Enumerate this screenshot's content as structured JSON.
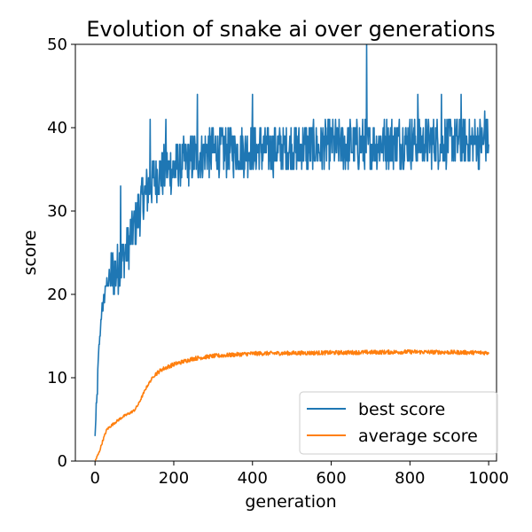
{
  "chart_data": {
    "type": "line",
    "title": "Evolution of snake ai over generations",
    "xlabel": "generation",
    "ylabel": "score",
    "xlim": [
      -50,
      1020
    ],
    "ylim": [
      0,
      50
    ],
    "xticks": [
      0,
      200,
      400,
      600,
      800,
      1000
    ],
    "yticks": [
      0,
      10,
      20,
      30,
      40,
      50
    ],
    "grid": false,
    "legend_position": "lower-right",
    "series": [
      {
        "name": "best score",
        "color": "#1f77b4",
        "trend": [
          [
            0,
            3
          ],
          [
            5,
            8
          ],
          [
            10,
            13
          ],
          [
            15,
            17
          ],
          [
            20,
            19
          ],
          [
            30,
            21
          ],
          [
            40,
            22
          ],
          [
            60,
            23
          ],
          [
            80,
            25
          ],
          [
            100,
            28
          ],
          [
            120,
            31
          ],
          [
            140,
            33
          ],
          [
            160,
            34
          ],
          [
            180,
            34.5
          ],
          [
            200,
            35
          ],
          [
            250,
            36
          ],
          [
            300,
            37
          ],
          [
            400,
            37
          ],
          [
            600,
            37.5
          ],
          [
            800,
            38
          ],
          [
            1000,
            38
          ]
        ],
        "noise": 3.0,
        "spikes": [
          [
            65,
            33
          ],
          [
            140,
            41
          ],
          [
            180,
            41
          ],
          [
            260,
            44
          ],
          [
            400,
            44
          ],
          [
            690,
            50
          ],
          [
            820,
            44
          ],
          [
            880,
            44
          ],
          [
            930,
            44
          ],
          [
            990,
            42
          ]
        ]
      },
      {
        "name": "average score",
        "color": "#ff7f0e",
        "trend": [
          [
            0,
            0
          ],
          [
            10,
            1
          ],
          [
            20,
            2.5
          ],
          [
            30,
            3.8
          ],
          [
            50,
            4.6
          ],
          [
            70,
            5.3
          ],
          [
            90,
            5.8
          ],
          [
            100,
            6.1
          ],
          [
            110,
            6.8
          ],
          [
            120,
            7.8
          ],
          [
            130,
            8.8
          ],
          [
            150,
            10.3
          ],
          [
            170,
            11
          ],
          [
            200,
            11.6
          ],
          [
            250,
            12.3
          ],
          [
            300,
            12.6
          ],
          [
            400,
            12.9
          ],
          [
            600,
            13
          ],
          [
            800,
            13.1
          ],
          [
            1000,
            13
          ]
        ],
        "noise": 0.25
      }
    ]
  }
}
